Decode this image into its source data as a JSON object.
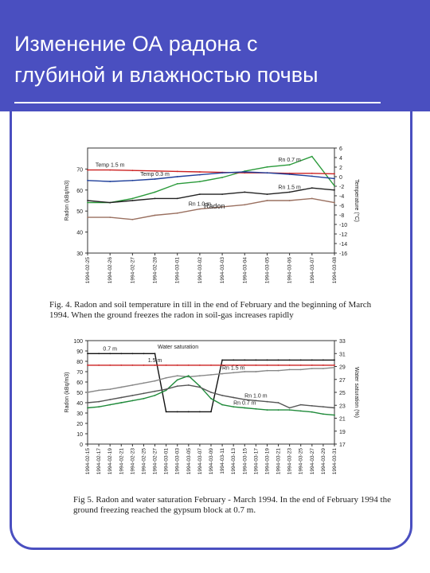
{
  "slide": {
    "title_line1": "Изменение ОА радона с",
    "title_line2": "глубиной и влажностью почвы",
    "accent_color": "#4a4fc0"
  },
  "figure4": {
    "caption": "Fig. 4. Radon and soil temperature in till in the end of February and the beginning of March 1994. When the ground freezes the radon in soil-gas increases rapidly",
    "chart_data": {
      "type": "line",
      "ylabel": "Radon (kBq/m3)",
      "y2label": "Temperature (°C)",
      "ylim": [
        30,
        80
      ],
      "y_ticks": [
        "30",
        "40",
        "50",
        "60",
        "70"
      ],
      "y2lim": [
        -16,
        6
      ],
      "y2_ticks": [
        "6",
        "4",
        "2",
        "0",
        "-2",
        "-4",
        "-6",
        "-8",
        "-10",
        "-12",
        "-14",
        "-16"
      ],
      "categories": [
        "1994-02-25",
        "1994-02-26",
        "1994-02-27",
        "1994-02-28",
        "1994-03-01",
        "1994-03-02",
        "1994-03-03",
        "1994-03-04",
        "1994-03-05",
        "1994-03-06",
        "1994-03-07",
        "1994-03-08"
      ],
      "annotations": [
        "Radon"
      ],
      "series": [
        {
          "name": "Rn 0.7 m",
          "axis": "left",
          "color": "#2a9a3a",
          "values": [
            54,
            54,
            56,
            59,
            63,
            64,
            66,
            69,
            71,
            72,
            76,
            62
          ]
        },
        {
          "name": "Rn 1.5 m",
          "axis": "left",
          "color": "#222222",
          "values": [
            55,
            54,
            55,
            56,
            56,
            58,
            58,
            59,
            58,
            59,
            61,
            60
          ]
        },
        {
          "name": "Rn 1.0 m",
          "axis": "left",
          "color": "#9a7060",
          "values": [
            47,
            47,
            46,
            48,
            49,
            51,
            52,
            53,
            55,
            55,
            56,
            54
          ]
        },
        {
          "name": "Temp 1.5 m",
          "axis": "right",
          "color": "#cc2222",
          "values": [
            1.4,
            1.4,
            1.3,
            1.2,
            1.1,
            1.0,
            0.9,
            0.8,
            0.8,
            0.7,
            0.7,
            0.6
          ]
        },
        {
          "name": "Temp 0.3 m",
          "axis": "right",
          "color": "#1f3f9a",
          "values": [
            -0.8,
            -1.0,
            -0.8,
            -0.5,
            0.0,
            0.4,
            0.8,
            1.0,
            0.8,
            0.5,
            0.1,
            -0.4
          ]
        }
      ]
    }
  },
  "figure5": {
    "caption": "Fig 5. Radon and water saturation February - March 1994. In the end of February 1994 the ground freezing reached the gypsum block at 0.7 m.",
    "chart_data": {
      "type": "line",
      "ylabel": "Radon (kBq/m3)",
      "y2label": "Water saturation (%)",
      "ylim": [
        0,
        100
      ],
      "y_ticks": [
        "0",
        "10",
        "20",
        "30",
        "40",
        "50",
        "60",
        "70",
        "80",
        "90",
        "100"
      ],
      "y2lim": [
        17,
        33
      ],
      "y2_ticks": [
        "33",
        "31",
        "29",
        "27",
        "25",
        "23",
        "21",
        "19",
        "17"
      ],
      "categories": [
        "1994-02-15",
        "1994-02-17",
        "1994-02-19",
        "1994-02-21",
        "1994-02-23",
        "1994-02-25",
        "1994-02-27",
        "1994-03-01",
        "1994-03-03",
        "1994-03-05",
        "1994-03-07",
        "1994-03-09",
        "1994-03-11",
        "1994-03-13",
        "1994-03-15",
        "1994-03-17",
        "1994-03-19",
        "1994-03-21",
        "1994-03-23",
        "1994-03-25",
        "1994-03-27",
        "1994-03-29",
        "1994-03-31"
      ],
      "annotations": [
        "Water saturation"
      ],
      "series": [
        {
          "name": "0.7 m",
          "axis": "right",
          "color": "#111111",
          "values": [
            31,
            31,
            31,
            31,
            31,
            31,
            31,
            22,
            22,
            22,
            22,
            22,
            30,
            30,
            30,
            30,
            30,
            30,
            30,
            30,
            30,
            30,
            30
          ]
        },
        {
          "name": "1.5 m",
          "axis": "right",
          "color": "#cc2222",
          "values": [
            29.2,
            29.2,
            29.2,
            29.2,
            29.2,
            29.2,
            29.2,
            29.2,
            29.2,
            29.2,
            29.2,
            29.2,
            29.2,
            29.2,
            29.2,
            29.2,
            29.2,
            29.2,
            29.2,
            29.2,
            29.2,
            29.2,
            29.2
          ]
        },
        {
          "name": "Rn 1.5 m",
          "axis": "left",
          "color": "#888888",
          "values": [
            50,
            52,
            53,
            55,
            57,
            59,
            61,
            64,
            66,
            65,
            66,
            67,
            68,
            69,
            70,
            70,
            71,
            71,
            72,
            72,
            73,
            73,
            74
          ]
        },
        {
          "name": "Rn 0.7 m",
          "axis": "left",
          "color": "#1f8a3a",
          "values": [
            35,
            36,
            38,
            40,
            42,
            44,
            47,
            52,
            62,
            66,
            56,
            44,
            38,
            36,
            35,
            34,
            33,
            33,
            33,
            32,
            31,
            29,
            28
          ]
        },
        {
          "name": "Rn 1.0 m",
          "axis": "left",
          "color": "#555555",
          "values": [
            40,
            41,
            43,
            45,
            47,
            49,
            51,
            53,
            56,
            57,
            55,
            50,
            47,
            45,
            43,
            42,
            41,
            40,
            35,
            38,
            37,
            36,
            35
          ]
        }
      ]
    }
  }
}
